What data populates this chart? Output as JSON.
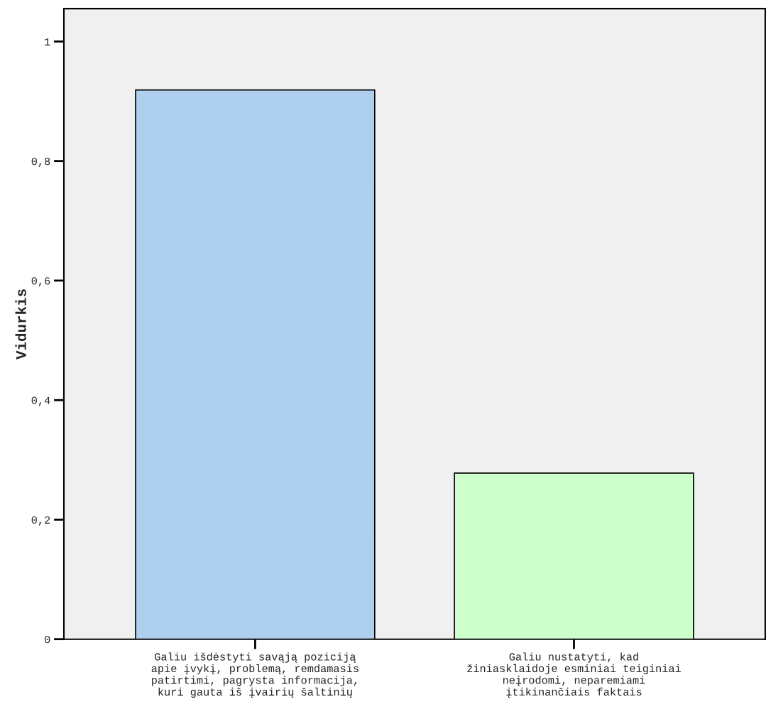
{
  "chart_data": {
    "type": "bar",
    "ylabel": "Vidurkis",
    "categories": [
      "Galiu išdėstyti savąją poziciją\napie įvykį, problemą, remdamasis\npatirtimi, pagrysta informacija,\nkuri gauta iš įvairių šaltinių",
      "Galiu nustatyti, kad\nžiniasklaidoje esminiai teiginiai\nneįrodomi, neparemiami\nįtikinančiais faktais"
    ],
    "values": [
      0.919,
      0.278
    ],
    "colors": [
      "#aed0ee",
      "#ccffcc"
    ],
    "ylim": [
      0,
      1.055
    ],
    "yticks": [
      0,
      {
        "value": 0.2,
        "label": "0,2"
      },
      {
        "value": 0.4,
        "label": "0,4"
      },
      {
        "value": 0.6,
        "label": "0,6"
      },
      {
        "value": 0.8,
        "label": "0,8"
      },
      1
    ],
    "grid": false
  }
}
